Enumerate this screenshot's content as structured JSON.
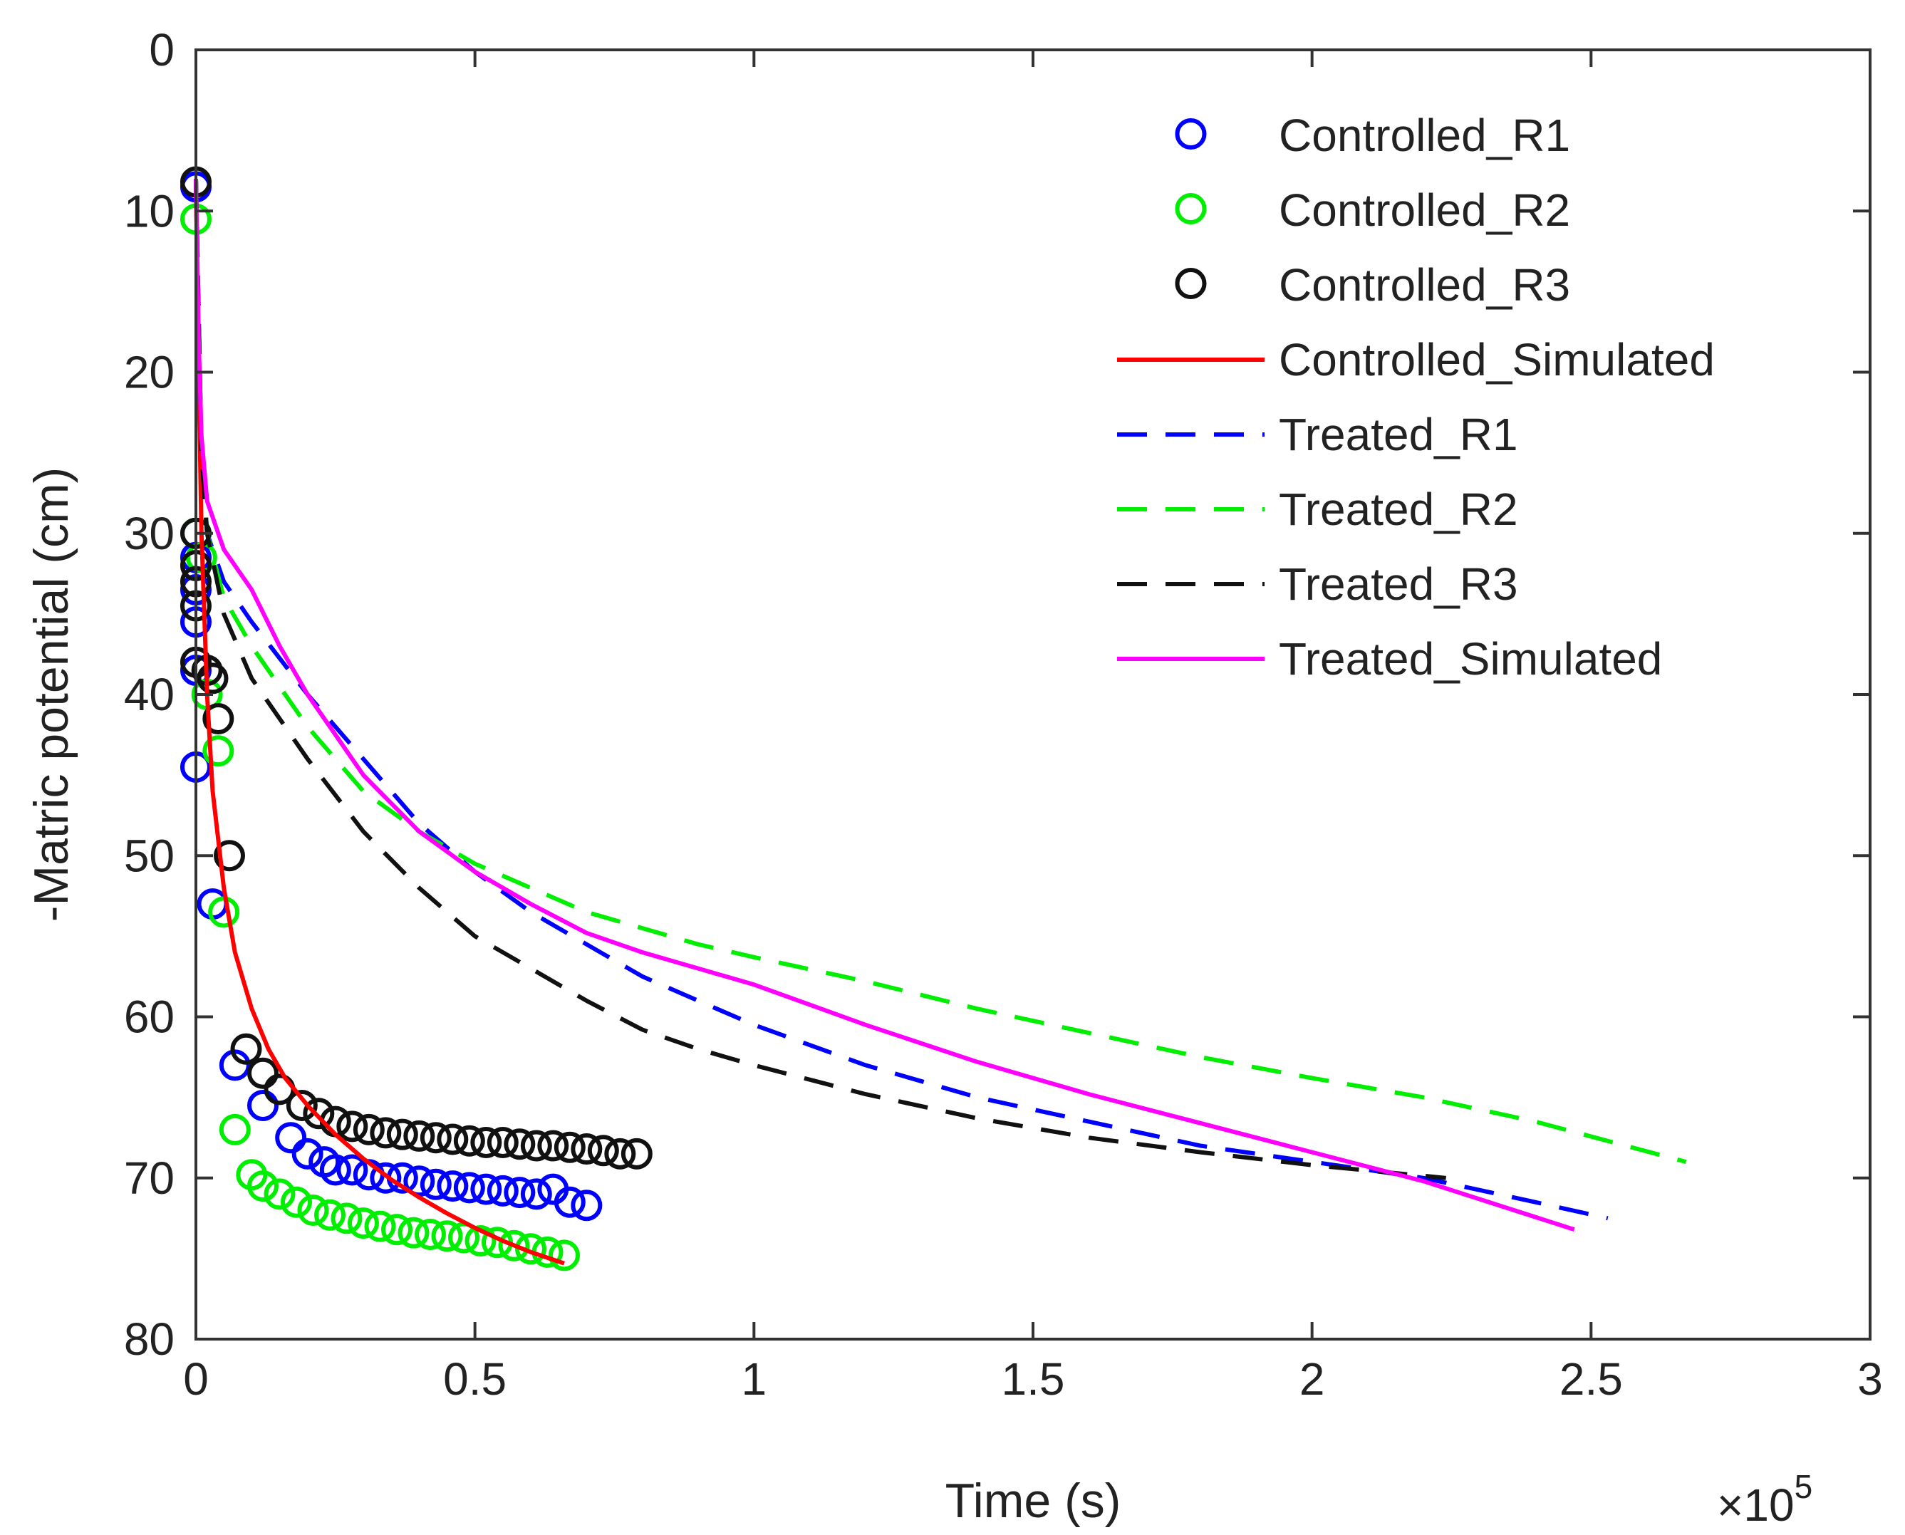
{
  "chart_data": {
    "type": "line",
    "title": "",
    "xlabel": "Time (s)",
    "ylabel": "-Matric potential (cm)",
    "x_multiplier": {
      "base": "×10",
      "exponent": "5"
    },
    "xlim": [
      0,
      3
    ],
    "ylim": [
      0,
      80
    ],
    "y_reversed": true,
    "grid": false,
    "legend_position": "top-right",
    "xticks": [
      0,
      0.5,
      1,
      1.5,
      2,
      2.5,
      3
    ],
    "xtick_labels": [
      "0",
      "0.5",
      "1",
      "1.5",
      "2",
      "2.5",
      "3"
    ],
    "yticks": [
      0,
      10,
      20,
      30,
      40,
      50,
      60,
      70,
      80
    ],
    "ytick_labels": [
      "0",
      "10",
      "20",
      "30",
      "40",
      "50",
      "60",
      "70",
      "80"
    ],
    "series": [
      {
        "name": "Controlled_R1",
        "style": "marker",
        "color": "#0000ff",
        "x": [
          0.0,
          0.0,
          0.0,
          0.0,
          0.0,
          0.0,
          0.03,
          0.07,
          0.12,
          0.17,
          0.2,
          0.23,
          0.25,
          0.28,
          0.31,
          0.34,
          0.37,
          0.4,
          0.43,
          0.46,
          0.49,
          0.52,
          0.55,
          0.58,
          0.61,
          0.64,
          0.67,
          0.7
        ],
        "y": [
          8.5,
          31.5,
          33.5,
          35.5,
          38.5,
          44.5,
          53,
          63,
          65.5,
          67.5,
          68.5,
          69,
          69.5,
          69.5,
          69.8,
          70,
          70,
          70.2,
          70.4,
          70.5,
          70.6,
          70.7,
          70.8,
          70.9,
          71,
          70.7,
          71.5,
          71.7
        ]
      },
      {
        "name": "Controlled_R2",
        "style": "marker",
        "color": "#00ee00",
        "x": [
          0.0,
          0.0,
          0.01,
          0.02,
          0.04,
          0.05,
          0.07,
          0.1,
          0.12,
          0.15,
          0.18,
          0.21,
          0.24,
          0.27,
          0.3,
          0.33,
          0.36,
          0.39,
          0.42,
          0.45,
          0.48,
          0.51,
          0.54,
          0.57,
          0.6,
          0.63,
          0.66
        ],
        "y": [
          10.5,
          30,
          31.5,
          40,
          43.5,
          53.5,
          67,
          69.8,
          70.5,
          71,
          71.5,
          72,
          72.3,
          72.5,
          72.8,
          73,
          73.2,
          73.4,
          73.5,
          73.6,
          73.7,
          73.9,
          74,
          74.2,
          74.4,
          74.6,
          74.8
        ]
      },
      {
        "name": "Controlled_R3",
        "style": "marker",
        "color": "#111111",
        "x": [
          0.0,
          0.0,
          0.0,
          0.0,
          0.0,
          0.0,
          0.02,
          0.03,
          0.04,
          0.06,
          0.09,
          0.12,
          0.15,
          0.19,
          0.22,
          0.25,
          0.28,
          0.31,
          0.34,
          0.37,
          0.4,
          0.43,
          0.46,
          0.49,
          0.52,
          0.55,
          0.58,
          0.61,
          0.64,
          0.67,
          0.7,
          0.73,
          0.76,
          0.79
        ],
        "y": [
          8.2,
          30,
          32,
          33,
          34.5,
          38,
          38.5,
          39,
          41.5,
          50,
          62,
          63.5,
          64.5,
          65.5,
          66,
          66.5,
          66.8,
          67,
          67.2,
          67.3,
          67.4,
          67.5,
          67.6,
          67.7,
          67.8,
          67.8,
          67.9,
          68,
          68,
          68.1,
          68.2,
          68.3,
          68.5,
          68.5
        ]
      },
      {
        "name": "Controlled_Simulated",
        "style": "solid",
        "color": "#ff0000",
        "x": [
          0.0,
          0.005,
          0.01,
          0.02,
          0.03,
          0.05,
          0.07,
          0.1,
          0.13,
          0.16,
          0.2,
          0.25,
          0.3,
          0.35,
          0.4,
          0.45,
          0.5,
          0.55,
          0.6,
          0.66
        ],
        "y": [
          8,
          20,
          30,
          40,
          46,
          52,
          56,
          59.5,
          62,
          63.8,
          65.5,
          67.3,
          68.8,
          70.1,
          71.2,
          72.2,
          73.1,
          73.9,
          74.6,
          75.3
        ]
      },
      {
        "name": "Treated_R1",
        "style": "dashed",
        "color": "#0000ff",
        "x": [
          0.0,
          0.01,
          0.02,
          0.05,
          0.1,
          0.2,
          0.3,
          0.4,
          0.5,
          0.6,
          0.7,
          0.8,
          0.9,
          1.0,
          1.2,
          1.4,
          1.6,
          1.8,
          2.0,
          2.2,
          2.4,
          2.53
        ],
        "y": [
          8,
          25,
          30,
          33,
          35.5,
          40,
          44,
          48,
          51,
          53.5,
          55.5,
          57.5,
          59,
          60.5,
          63,
          65,
          66.5,
          68,
          69,
          70,
          71.5,
          72.5
        ]
      },
      {
        "name": "Treated_R2",
        "style": "dashed",
        "color": "#00ee00",
        "x": [
          0.0,
          0.01,
          0.02,
          0.05,
          0.1,
          0.2,
          0.3,
          0.4,
          0.5,
          0.6,
          0.7,
          0.8,
          0.9,
          1.0,
          1.2,
          1.4,
          1.6,
          1.8,
          2.0,
          2.2,
          2.4,
          2.67
        ],
        "y": [
          8,
          25,
          30,
          34,
          37,
          42,
          46,
          48.5,
          50.5,
          52,
          53.5,
          54.5,
          55.5,
          56.3,
          57.8,
          59.5,
          61,
          62.5,
          63.8,
          65,
          66.5,
          69
        ]
      },
      {
        "name": "Treated_R3",
        "style": "dashed",
        "color": "#111111",
        "x": [
          0.0,
          0.01,
          0.02,
          0.05,
          0.1,
          0.2,
          0.3,
          0.4,
          0.5,
          0.6,
          0.7,
          0.8,
          0.9,
          1.0,
          1.2,
          1.4,
          1.6,
          1.8,
          2.0,
          2.24
        ],
        "y": [
          8,
          25,
          30,
          35,
          39,
          44,
          48.5,
          52,
          55,
          57,
          59,
          60.8,
          62,
          63,
          64.8,
          66.3,
          67.5,
          68.4,
          69.2,
          70
        ]
      },
      {
        "name": "Treated_Simulated",
        "style": "solid",
        "color": "#ff00ff",
        "x": [
          0.0,
          0.005,
          0.01,
          0.02,
          0.05,
          0.1,
          0.15,
          0.2,
          0.3,
          0.4,
          0.5,
          0.6,
          0.7,
          0.8,
          0.9,
          1.0,
          1.2,
          1.4,
          1.6,
          1.8,
          2.0,
          2.2,
          2.47
        ],
        "y": [
          8,
          18,
          24,
          28,
          31,
          33.5,
          37,
          40,
          45,
          48.5,
          51,
          53,
          54.8,
          56,
          57,
          58,
          60.5,
          62.8,
          64.8,
          66.6,
          68.4,
          70.2,
          73.2
        ]
      }
    ]
  }
}
